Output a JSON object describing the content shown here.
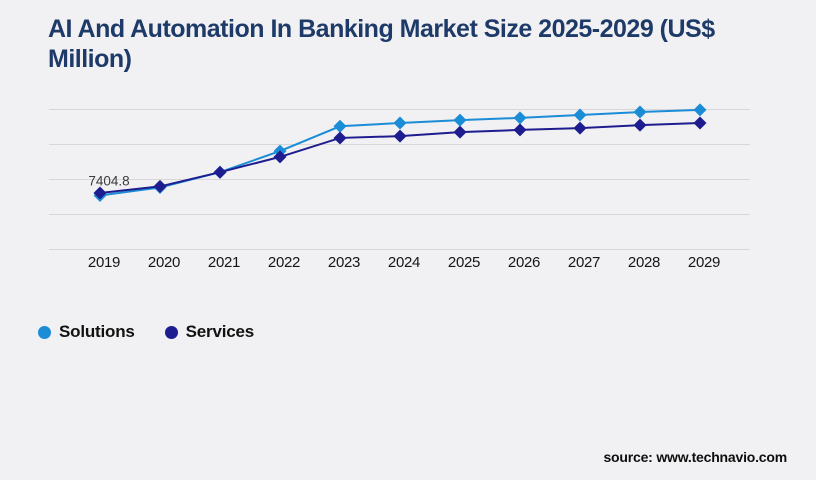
{
  "title": {
    "text": "AI And Automation In Banking Market Size 2025-2029 (US$ Million)",
    "line1": "AI And Automation In Banking Market Size 2025-2029 (US$",
    "line2": "Million)",
    "color": "#1e3a69"
  },
  "legend": {
    "items": [
      {
        "label": "Solutions",
        "color": "#1b8cd6"
      },
      {
        "label": "Services",
        "color": "#1d1d8f"
      }
    ]
  },
  "source": {
    "text": "source: www.technavio.com"
  },
  "colors": {
    "background": "#f1f1f3",
    "gridline": "#d7d7d9",
    "axis_label": "#161616",
    "annotation": "#3c3c3c"
  },
  "chart_data": {
    "type": "line",
    "categories": [
      "2019",
      "2020",
      "2021",
      "2022",
      "2023",
      "2024",
      "2025",
      "2026",
      "2027",
      "2028",
      "2029"
    ],
    "series": [
      {
        "name": "Solutions",
        "color": "#1b8cd6",
        "marker": "diamond",
        "values": [
          7404.8,
          8500,
          10600,
          13500,
          16900,
          17350,
          17750,
          18050,
          18450,
          18850,
          19150
        ]
      },
      {
        "name": "Services",
        "color": "#1d1d8f",
        "marker": "diamond",
        "values": [
          7750,
          8650,
          10600,
          12700,
          15300,
          15550,
          16100,
          16400,
          16650,
          17050,
          17350
        ]
      }
    ],
    "annotation": {
      "text": "7404.8",
      "series_index": 0,
      "point_index": 0
    },
    "title": "AI And Automation In Banking Market Size 2025-2029 (US$ Million)",
    "xlabel": "",
    "ylabel": "",
    "ylim": [
      0,
      19200
    ],
    "gridline_count": 5,
    "grid": true,
    "y_axis_labels_shown": false,
    "legend_position": "bottom-left"
  }
}
